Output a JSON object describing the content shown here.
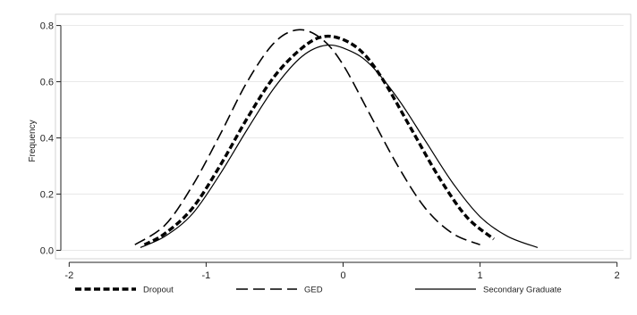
{
  "chart_data": {
    "type": "line",
    "title": "",
    "xlabel": "",
    "ylabel": "Frequency",
    "xlim": [
      -2.1,
      2.1
    ],
    "ylim": [
      -0.03,
      0.84
    ],
    "x_ticks": [
      "-2",
      "-1",
      "0",
      "1",
      "2"
    ],
    "y_ticks": [
      "0.0",
      "0.2",
      "0.4",
      "0.6",
      "0.8"
    ],
    "x_tick_values": [
      -2,
      -1,
      0,
      1,
      2
    ],
    "y_tick_values": [
      0.0,
      0.2,
      0.4,
      0.6,
      0.8
    ],
    "grid": "horizontal",
    "legend_position": "bottom",
    "series": [
      {
        "name": "Dropout",
        "style": "thick-dashed",
        "x": [
          -1.45,
          -1.3,
          -1.1,
          -0.9,
          -0.7,
          -0.5,
          -0.3,
          -0.15,
          0.0,
          0.15,
          0.3,
          0.5,
          0.7,
          0.9,
          1.1
        ],
        "y": [
          0.02,
          0.06,
          0.15,
          0.3,
          0.47,
          0.62,
          0.72,
          0.76,
          0.75,
          0.7,
          0.6,
          0.43,
          0.26,
          0.12,
          0.04
        ]
      },
      {
        "name": "GED",
        "style": "long-dashed",
        "x": [
          -1.52,
          -1.3,
          -1.1,
          -0.9,
          -0.7,
          -0.5,
          -0.32,
          -0.15,
          0.0,
          0.2,
          0.4,
          0.6,
          0.8,
          1.0
        ],
        "y": [
          0.02,
          0.09,
          0.23,
          0.41,
          0.6,
          0.74,
          0.785,
          0.75,
          0.66,
          0.48,
          0.3,
          0.15,
          0.06,
          0.02
        ]
      },
      {
        "name": "Secondary Graduate",
        "style": "solid",
        "x": [
          -1.48,
          -1.3,
          -1.1,
          -0.9,
          -0.7,
          -0.5,
          -0.3,
          -0.12,
          0.05,
          0.2,
          0.4,
          0.6,
          0.8,
          1.0,
          1.2,
          1.42
        ],
        "y": [
          0.01,
          0.05,
          0.13,
          0.27,
          0.43,
          0.58,
          0.69,
          0.73,
          0.71,
          0.66,
          0.54,
          0.39,
          0.24,
          0.12,
          0.05,
          0.01
        ]
      }
    ]
  }
}
